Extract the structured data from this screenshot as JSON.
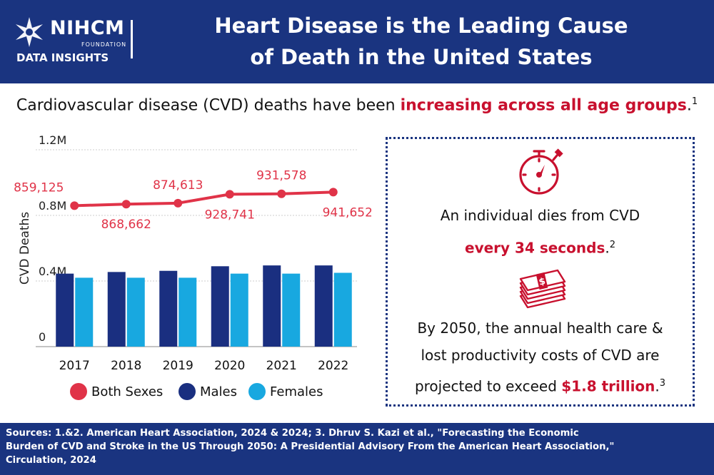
{
  "header": {
    "logo_name": "NIHCM",
    "logo_foundation": "FOUNDATION",
    "logo_insights": "DATA INSIGHTS",
    "title_line1": "Heart Disease is the Leading Cause",
    "title_line2": "of Death in the United States"
  },
  "subtitle": {
    "text_before": "Cardiovascular disease (CVD) deaths have been ",
    "highlight": "increasing across all age groups",
    "text_after": ".",
    "footnote": "1"
  },
  "colors": {
    "navy": "#1a3480",
    "red": "#e03348",
    "light_blue": "#18a8e0",
    "dark_blue": "#1a2f80",
    "highlight_red": "#c8102e"
  },
  "chart_data": {
    "type": "bar",
    "categories": [
      "2017",
      "2018",
      "2019",
      "2020",
      "2021",
      "2022"
    ],
    "ylabel": "CVD Deaths",
    "ylim": [
      0,
      1200000
    ],
    "yticks": [
      0,
      400000,
      800000,
      1200000
    ],
    "ytick_labels": [
      "0",
      "0.4M",
      "0.8M",
      "1.2M"
    ],
    "grid": true,
    "legend_position": "bottom",
    "series": [
      {
        "name": "Both Sexes",
        "type": "line",
        "values": [
          859125,
          868662,
          874613,
          928741,
          931578,
          941652
        ],
        "labels": [
          "859,125",
          "868,662",
          "874,613",
          "928,741",
          "931,578",
          "941,652"
        ]
      },
      {
        "name": "Males",
        "type": "bar",
        "values": [
          445000,
          455000,
          462000,
          490000,
          495000,
          495000
        ]
      },
      {
        "name": "Females",
        "type": "bar",
        "values": [
          420000,
          420000,
          420000,
          445000,
          445000,
          450000
        ]
      }
    ]
  },
  "info": {
    "line1": "An individual dies from CVD",
    "line2_highlight": "every 34 seconds",
    "line2_after": ".",
    "line2_footnote": "2",
    "line3": "By 2050, the annual health care &",
    "line4": "lost productivity costs of CVD are",
    "line5_before": "projected to exceed ",
    "line5_highlight": "$1.8 trillion",
    "line5_after": ".",
    "line5_footnote": "3",
    "icon_top": "stopwatch-icon",
    "icon_bottom": "money-stack-icon"
  },
  "footer": {
    "line1": "Sources: 1.&2. American Heart Association, 2024 & 2024; 3. Dhruv S. Kazi et al., \"Forecasting the Economic",
    "line2": "Burden of CVD and Stroke in the US Through 2050: A Presidential Advisory From the American Heart Association,\"",
    "line3": "Circulation, 2024"
  }
}
